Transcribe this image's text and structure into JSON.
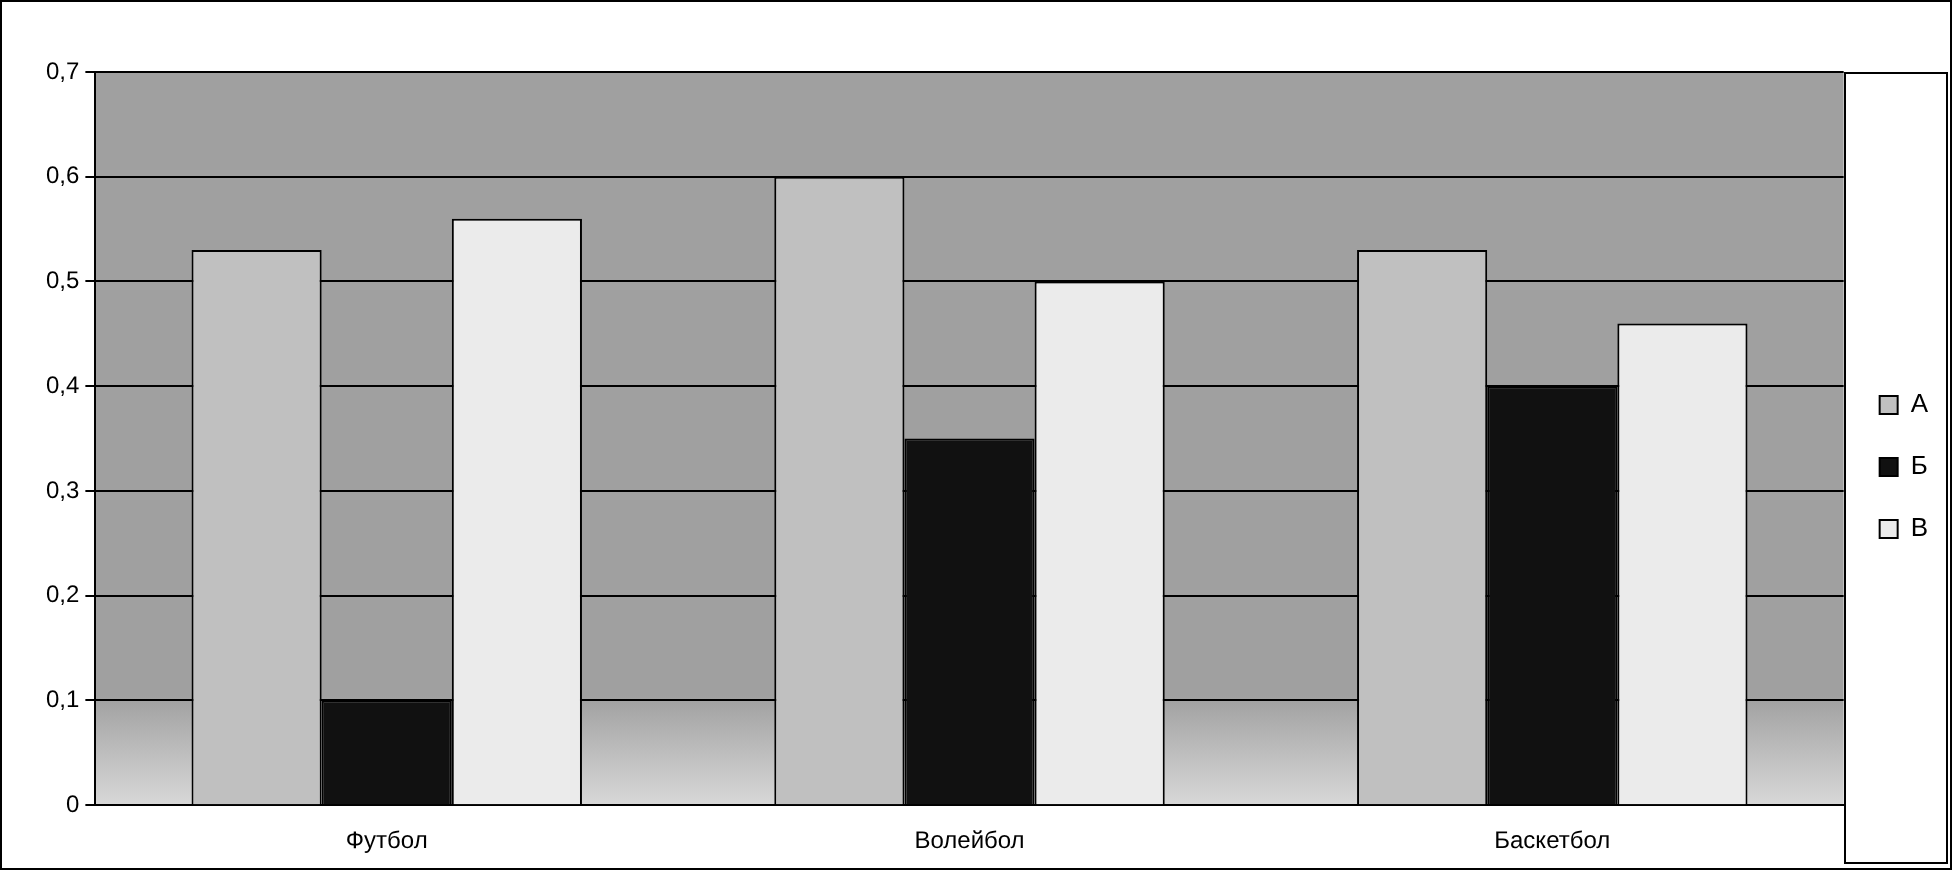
{
  "chart_data": {
    "type": "bar",
    "categories": [
      "Футбол",
      "Волейбол",
      "Баскетбол"
    ],
    "series": [
      {
        "name": "А",
        "color": "#c0c0c0",
        "values": [
          0.53,
          0.6,
          0.53
        ]
      },
      {
        "name": "Б",
        "color": "#111111",
        "values": [
          0.1,
          0.35,
          0.4
        ]
      },
      {
        "name": "В",
        "color": "#ebebeb",
        "values": [
          0.56,
          0.5,
          0.46
        ]
      }
    ],
    "ylim": [
      0,
      0.7
    ],
    "yticks": [
      {
        "value": 0,
        "label": "0"
      },
      {
        "value": 0.1,
        "label": "0,1"
      },
      {
        "value": 0.2,
        "label": "0,2"
      },
      {
        "value": 0.3,
        "label": "0,3"
      },
      {
        "value": 0.4,
        "label": "0,4"
      },
      {
        "value": 0.5,
        "label": "0,5"
      },
      {
        "value": 0.6,
        "label": "0,6"
      },
      {
        "value": 0.7,
        "label": "0,7"
      }
    ],
    "grid": "y",
    "legend": "right"
  }
}
